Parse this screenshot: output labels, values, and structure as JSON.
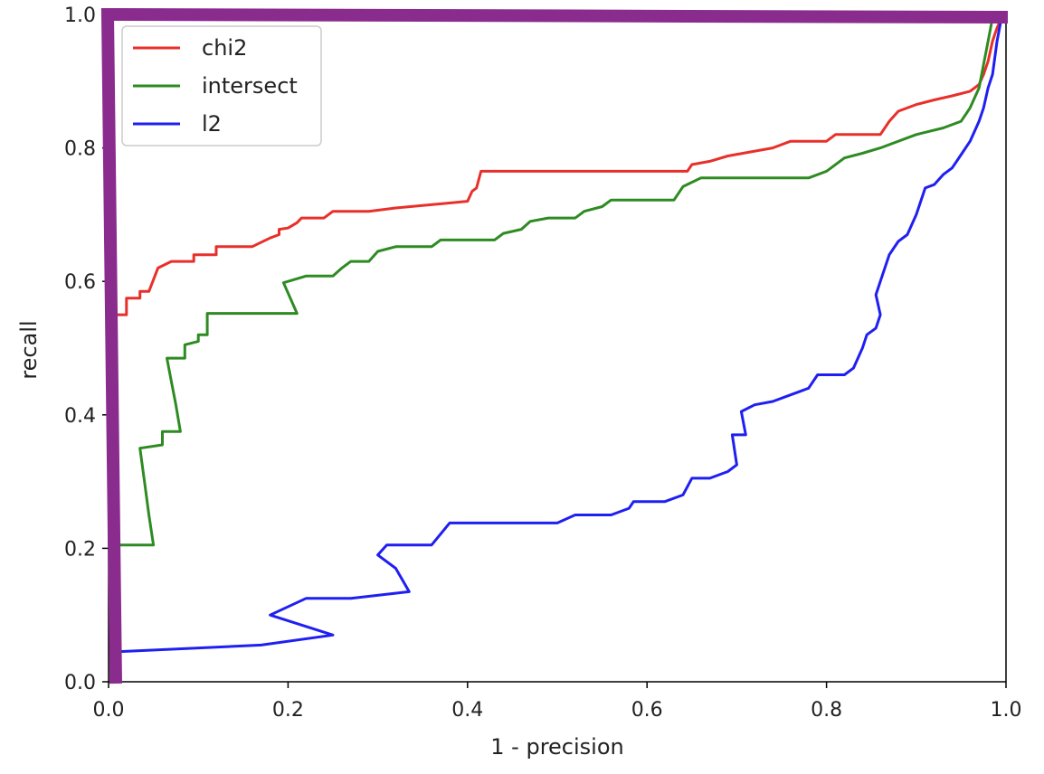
{
  "chart_data": {
    "type": "line",
    "title": "",
    "xlabel": "1 - precision",
    "ylabel": "recall",
    "xlim": [
      0,
      1
    ],
    "ylim": [
      0,
      1
    ],
    "xticks": [
      "0.0",
      "0.2",
      "0.4",
      "0.6",
      "0.8",
      "1.0"
    ],
    "yticks": [
      "0.0",
      "0.2",
      "0.4",
      "0.6",
      "0.8",
      "1.0"
    ],
    "grid": false,
    "legend_position": "top-left",
    "highlight_color": "#8a2b8e",
    "series": [
      {
        "name": "chi2",
        "color": "#e8302a",
        "points": [
          [
            0.01,
            0.55
          ],
          [
            0.02,
            0.55
          ],
          [
            0.02,
            0.575
          ],
          [
            0.035,
            0.575
          ],
          [
            0.035,
            0.585
          ],
          [
            0.045,
            0.585
          ],
          [
            0.055,
            0.62
          ],
          [
            0.07,
            0.63
          ],
          [
            0.095,
            0.63
          ],
          [
            0.095,
            0.64
          ],
          [
            0.12,
            0.64
          ],
          [
            0.12,
            0.652
          ],
          [
            0.16,
            0.652
          ],
          [
            0.18,
            0.665
          ],
          [
            0.19,
            0.67
          ],
          [
            0.19,
            0.678
          ],
          [
            0.2,
            0.68
          ],
          [
            0.21,
            0.688
          ],
          [
            0.215,
            0.695
          ],
          [
            0.24,
            0.695
          ],
          [
            0.25,
            0.705
          ],
          [
            0.29,
            0.705
          ],
          [
            0.32,
            0.71
          ],
          [
            0.4,
            0.72
          ],
          [
            0.405,
            0.735
          ],
          [
            0.41,
            0.74
          ],
          [
            0.415,
            0.765
          ],
          [
            0.5,
            0.765
          ],
          [
            0.645,
            0.765
          ],
          [
            0.65,
            0.775
          ],
          [
            0.67,
            0.78
          ],
          [
            0.69,
            0.788
          ],
          [
            0.74,
            0.8
          ],
          [
            0.76,
            0.81
          ],
          [
            0.8,
            0.81
          ],
          [
            0.81,
            0.82
          ],
          [
            0.86,
            0.82
          ],
          [
            0.87,
            0.84
          ],
          [
            0.88,
            0.855
          ],
          [
            0.9,
            0.865
          ],
          [
            0.92,
            0.872
          ],
          [
            0.94,
            0.878
          ],
          [
            0.96,
            0.885
          ],
          [
            0.97,
            0.895
          ],
          [
            0.975,
            0.91
          ],
          [
            0.98,
            0.93
          ],
          [
            0.985,
            0.96
          ],
          [
            0.99,
            0.98
          ],
          [
            0.995,
            0.995
          ]
        ]
      },
      {
        "name": "intersect",
        "color": "#2e8b22",
        "points": [
          [
            0.01,
            0.205
          ],
          [
            0.05,
            0.205
          ],
          [
            0.045,
            0.25
          ],
          [
            0.04,
            0.3
          ],
          [
            0.035,
            0.35
          ],
          [
            0.06,
            0.355
          ],
          [
            0.06,
            0.375
          ],
          [
            0.08,
            0.375
          ],
          [
            0.075,
            0.415
          ],
          [
            0.07,
            0.45
          ],
          [
            0.065,
            0.485
          ],
          [
            0.085,
            0.485
          ],
          [
            0.085,
            0.505
          ],
          [
            0.1,
            0.51
          ],
          [
            0.1,
            0.52
          ],
          [
            0.11,
            0.52
          ],
          [
            0.11,
            0.552
          ],
          [
            0.21,
            0.552
          ],
          [
            0.195,
            0.598
          ],
          [
            0.22,
            0.608
          ],
          [
            0.25,
            0.608
          ],
          [
            0.26,
            0.62
          ],
          [
            0.27,
            0.63
          ],
          [
            0.29,
            0.63
          ],
          [
            0.3,
            0.645
          ],
          [
            0.32,
            0.652
          ],
          [
            0.36,
            0.652
          ],
          [
            0.37,
            0.662
          ],
          [
            0.43,
            0.662
          ],
          [
            0.44,
            0.672
          ],
          [
            0.46,
            0.678
          ],
          [
            0.47,
            0.69
          ],
          [
            0.49,
            0.695
          ],
          [
            0.52,
            0.695
          ],
          [
            0.53,
            0.705
          ],
          [
            0.55,
            0.712
          ],
          [
            0.56,
            0.722
          ],
          [
            0.63,
            0.722
          ],
          [
            0.64,
            0.742
          ],
          [
            0.66,
            0.755
          ],
          [
            0.78,
            0.755
          ],
          [
            0.8,
            0.765
          ],
          [
            0.82,
            0.785
          ],
          [
            0.84,
            0.792
          ],
          [
            0.86,
            0.8
          ],
          [
            0.9,
            0.82
          ],
          [
            0.93,
            0.83
          ],
          [
            0.95,
            0.84
          ],
          [
            0.96,
            0.86
          ],
          [
            0.97,
            0.89
          ],
          [
            0.975,
            0.925
          ],
          [
            0.98,
            0.96
          ],
          [
            0.985,
            0.995
          ]
        ]
      },
      {
        "name": "l2",
        "color": "#1f1ff2",
        "points": [
          [
            0.01,
            0.045
          ],
          [
            0.17,
            0.055
          ],
          [
            0.25,
            0.07
          ],
          [
            0.18,
            0.1
          ],
          [
            0.22,
            0.125
          ],
          [
            0.27,
            0.125
          ],
          [
            0.335,
            0.135
          ],
          [
            0.32,
            0.17
          ],
          [
            0.3,
            0.19
          ],
          [
            0.31,
            0.205
          ],
          [
            0.36,
            0.205
          ],
          [
            0.38,
            0.238
          ],
          [
            0.5,
            0.238
          ],
          [
            0.52,
            0.25
          ],
          [
            0.56,
            0.25
          ],
          [
            0.58,
            0.26
          ],
          [
            0.585,
            0.27
          ],
          [
            0.62,
            0.27
          ],
          [
            0.64,
            0.28
          ],
          [
            0.65,
            0.305
          ],
          [
            0.67,
            0.305
          ],
          [
            0.69,
            0.315
          ],
          [
            0.7,
            0.325
          ],
          [
            0.695,
            0.37
          ],
          [
            0.71,
            0.37
          ],
          [
            0.705,
            0.405
          ],
          [
            0.72,
            0.415
          ],
          [
            0.74,
            0.42
          ],
          [
            0.76,
            0.43
          ],
          [
            0.78,
            0.44
          ],
          [
            0.79,
            0.46
          ],
          [
            0.82,
            0.46
          ],
          [
            0.83,
            0.47
          ],
          [
            0.84,
            0.5
          ],
          [
            0.845,
            0.52
          ],
          [
            0.855,
            0.53
          ],
          [
            0.86,
            0.55
          ],
          [
            0.855,
            0.58
          ],
          [
            0.86,
            0.6
          ],
          [
            0.87,
            0.64
          ],
          [
            0.88,
            0.66
          ],
          [
            0.89,
            0.67
          ],
          [
            0.9,
            0.7
          ],
          [
            0.91,
            0.74
          ],
          [
            0.92,
            0.745
          ],
          [
            0.93,
            0.76
          ],
          [
            0.94,
            0.77
          ],
          [
            0.95,
            0.79
          ],
          [
            0.96,
            0.81
          ],
          [
            0.97,
            0.84
          ],
          [
            0.975,
            0.86
          ],
          [
            0.98,
            0.89
          ],
          [
            0.985,
            0.91
          ],
          [
            0.99,
            0.96
          ],
          [
            0.995,
            0.995
          ]
        ]
      }
    ]
  }
}
